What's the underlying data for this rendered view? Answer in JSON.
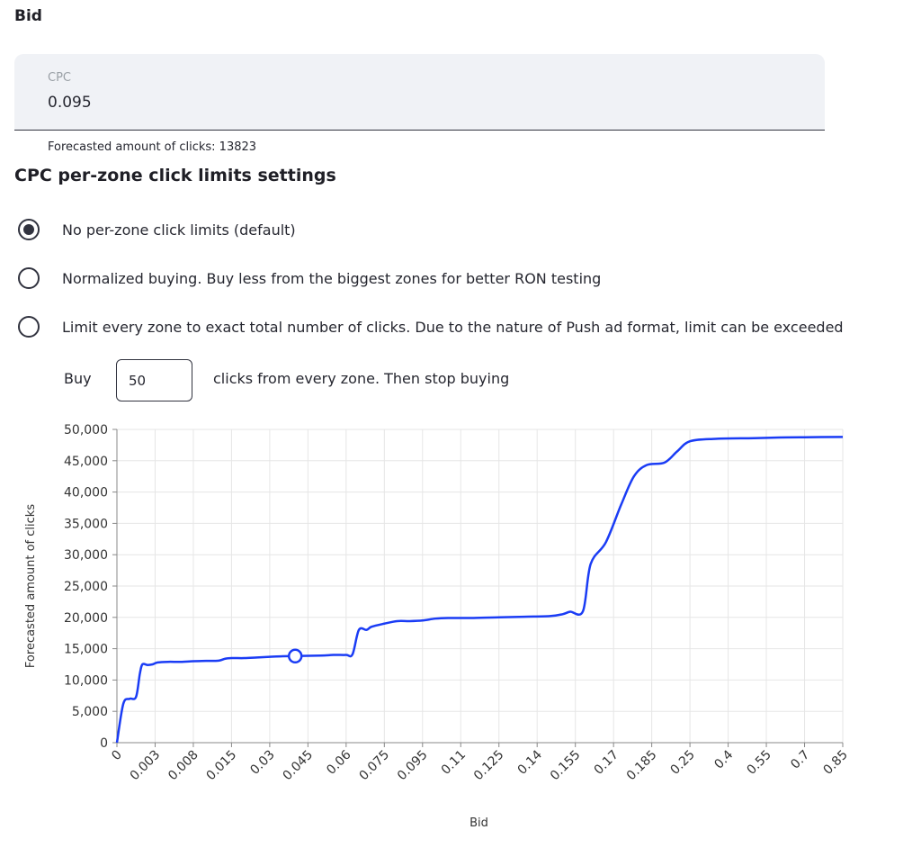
{
  "bid": {
    "heading": "Bid"
  },
  "cpc": {
    "label": "CPC",
    "value": "0.095",
    "forecast_text": "Forecasted amount of clicks: 13823"
  },
  "limits": {
    "title": "CPC per-zone click limits settings",
    "options": [
      {
        "label": "No per-zone click limits (default)",
        "selected": true
      },
      {
        "label": "Normalized buying. Buy less from the biggest zones for better RON testing",
        "selected": false
      },
      {
        "label": "Limit every zone to exact total number of clicks. Due to the nature of Push ad format, limit can be exceeded",
        "selected": false
      }
    ],
    "buy": {
      "prefix": "Buy",
      "value": "50",
      "suffix": "clicks from every zone. Then stop buying"
    }
  },
  "colors": {
    "line": "#1a3cf5",
    "grid": "#e6e6e6",
    "axis": "#888888",
    "text": "#333333"
  },
  "chart_data": {
    "type": "line",
    "xlabel": "Bid",
    "ylabel": "Forecasted amount of clicks",
    "categories": [
      "0",
      "0.003",
      "0.008",
      "0.015",
      "0.03",
      "0.045",
      "0.06",
      "0.075",
      "0.095",
      "0.11",
      "0.125",
      "0.14",
      "0.155",
      "0.17",
      "0.185",
      "0.25",
      "0.4",
      "0.55",
      "0.7",
      "0.85"
    ],
    "yticks": [
      "0",
      "5,000",
      "10,000",
      "15,000",
      "20,000",
      "25,000",
      "30,000",
      "35,000",
      "40,000",
      "45,000",
      "50,000"
    ],
    "ylim": [
      0,
      50000
    ],
    "grid": true,
    "series": [
      {
        "points": [
          [
            0,
            0
          ],
          [
            0.25,
            6200
          ],
          [
            0.5,
            7000
          ],
          [
            0.75,
            7300
          ],
          [
            0.9,
            11000
          ],
          [
            1.0,
            12500
          ],
          [
            1.2,
            12400
          ],
          [
            1.4,
            12500
          ],
          [
            1.6,
            12800
          ],
          [
            2,
            12900
          ],
          [
            2.5,
            12900
          ],
          [
            3,
            13000
          ],
          [
            3.5,
            13050
          ],
          [
            4,
            13100
          ],
          [
            4.25,
            13400
          ],
          [
            4.5,
            13500
          ],
          [
            5,
            13500
          ],
          [
            5.5,
            13600
          ],
          [
            6,
            13700
          ],
          [
            6.5,
            13800
          ],
          [
            7,
            13823
          ],
          [
            8,
            13900
          ],
          [
            8.5,
            14000
          ],
          [
            9,
            14000
          ],
          [
            9.25,
            14100
          ],
          [
            9.5,
            18000
          ],
          [
            9.8,
            18000
          ],
          [
            10,
            18500
          ],
          [
            10.5,
            19000
          ],
          [
            11,
            19400
          ],
          [
            11.5,
            19400
          ],
          [
            12,
            19500
          ],
          [
            12.5,
            19800
          ],
          [
            13,
            19900
          ],
          [
            14,
            19900
          ],
          [
            15,
            20000
          ],
          [
            16,
            20100
          ],
          [
            17,
            20200
          ],
          [
            17.5,
            20500
          ],
          [
            17.8,
            20900
          ],
          [
            18.3,
            21000
          ],
          [
            18.6,
            28500
          ],
          [
            19.2,
            32000
          ],
          [
            19.8,
            38000
          ],
          [
            20.3,
            42500
          ],
          [
            20.8,
            44300
          ],
          [
            21.5,
            44700
          ],
          [
            22,
            46500
          ],
          [
            22.5,
            48100
          ],
          [
            23.5,
            48500
          ],
          [
            25,
            48600
          ],
          [
            26,
            48700
          ],
          [
            27,
            48750
          ],
          [
            28.5,
            48800
          ]
        ]
      }
    ],
    "marker": {
      "x": 7,
      "y": 13823
    }
  }
}
